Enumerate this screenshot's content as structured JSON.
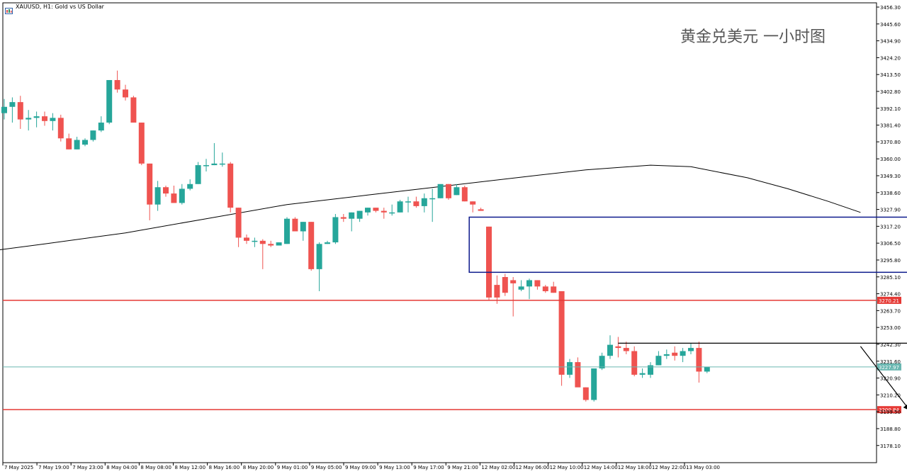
{
  "header": {
    "symbol_line": "XAUUSD, H1:  Gold vs US Dollar",
    "icon": "chart-window-icon"
  },
  "watermark": "黄金兑美元 一小时图",
  "colors": {
    "bull": "#26a69a",
    "bear": "#ef5350",
    "ma": "#000000",
    "support_resistance": "#e53935",
    "zone": "#0d1a8c",
    "bid_line": "#6ab7b1"
  },
  "chart_data": {
    "type": "candlestick",
    "symbol": "XAUUSD",
    "timeframe": "H1",
    "ylim": [
      3167.2,
      3459.0
    ],
    "y_ticks": [
      "3456.30",
      "3445.60",
      "3434.90",
      "3424.20",
      "3413.50",
      "3402.80",
      "3392.10",
      "3381.40",
      "3370.80",
      "3360.00",
      "3349.30",
      "3338.60",
      "3327.90",
      "3317.20",
      "3306.50",
      "3295.80",
      "3285.10",
      "3274.40",
      "3263.70",
      "3253.00",
      "3242.30",
      "3231.60",
      "3220.90",
      "3210.20",
      "3199.50",
      "3188.80",
      "3178.10"
    ],
    "x_ticks": [
      "7 May 2025",
      "7 May 19:00",
      "7 May 23:00",
      "8 May 04:00",
      "8 May 08:00",
      "8 May 12:00",
      "8 May 16:00",
      "8 May 20:00",
      "9 May 01:00",
      "9 May 05:00",
      "9 May 09:00",
      "9 May 13:00",
      "9 May 17:00",
      "9 May 21:00",
      "12 May 02:00",
      "12 May 06:00",
      "12 May 10:00",
      "12 May 14:00",
      "12 May 18:00",
      "12 May 22:00",
      "13 May 03:00"
    ],
    "candles": [
      [
        3389,
        3398,
        3385,
        3393
      ],
      [
        3393,
        3399,
        3383,
        3396
      ],
      [
        3396,
        3400,
        3379,
        3385
      ],
      [
        3385,
        3391,
        3378,
        3386
      ],
      [
        3386,
        3390,
        3380,
        3387
      ],
      [
        3387,
        3390,
        3381,
        3384
      ],
      [
        3384,
        3389,
        3378,
        3386
      ],
      [
        3386,
        3388,
        3371,
        3373
      ],
      [
        3373,
        3376,
        3366,
        3366
      ],
      [
        3366,
        3374,
        3366,
        3372
      ],
      [
        3369,
        3373,
        3368,
        3372
      ],
      [
        3372,
        3378,
        3371,
        3378
      ],
      [
        3378,
        3387,
        3377,
        3383
      ],
      [
        3383,
        3410,
        3382,
        3410
      ],
      [
        3410,
        3416,
        3402,
        3404
      ],
      [
        3404,
        3407,
        3397,
        3399
      ],
      [
        3399,
        3400,
        3383,
        3383
      ],
      [
        3383,
        3383,
        3356,
        3357
      ],
      [
        3357,
        3357,
        3321,
        3331
      ],
      [
        3331,
        3346,
        3327,
        3342
      ],
      [
        3342,
        3343,
        3336,
        3338
      ],
      [
        3338,
        3343,
        3332,
        3332
      ],
      [
        3332,
        3344,
        3331,
        3341
      ],
      [
        3341,
        3347,
        3340,
        3344
      ],
      [
        3344,
        3358,
        3344,
        3356
      ],
      [
        3356,
        3360,
        3352,
        3356
      ],
      [
        3356,
        3370,
        3356,
        3357
      ],
      [
        3357,
        3364,
        3355,
        3357
      ],
      [
        3357,
        3358,
        3326,
        3329
      ],
      [
        3329,
        3329,
        3304,
        3310
      ],
      [
        3310,
        3312,
        3306,
        3308
      ],
      [
        3308,
        3310,
        3304,
        3308
      ],
      [
        3308,
        3309,
        3290,
        3306
      ],
      [
        3306,
        3308,
        3304,
        3305
      ],
      [
        3305,
        3307,
        3305,
        3307
      ],
      [
        3306,
        3323,
        3306,
        3322
      ],
      [
        3322,
        3323,
        3314,
        3314
      ],
      [
        3314,
        3320,
        3308,
        3320
      ],
      [
        3320,
        3320,
        3289,
        3290
      ],
      [
        3290,
        3307,
        3276,
        3306
      ],
      [
        3306,
        3308,
        3306,
        3307
      ],
      [
        3307,
        3325,
        3306,
        3323
      ],
      [
        3323,
        3325,
        3320,
        3322
      ],
      [
        3322,
        3326,
        3314,
        3326
      ],
      [
        3322,
        3327,
        3320,
        3327
      ],
      [
        3326,
        3329,
        3324,
        3329
      ],
      [
        3329,
        3329,
        3326,
        3327
      ],
      [
        3327,
        3329,
        3322,
        3326
      ],
      [
        3326,
        3331,
        3324,
        3326
      ],
      [
        3326,
        3334,
        3326,
        3333
      ],
      [
        3333,
        3336,
        3326,
        3333
      ],
      [
        3333,
        3336,
        3329,
        3330
      ],
      [
        3330,
        3338,
        3326,
        3335
      ],
      [
        3335,
        3341,
        3320,
        3335
      ],
      [
        3335,
        3343,
        3335,
        3344
      ],
      [
        3344,
        3344,
        3334,
        3335
      ],
      [
        3337,
        3344,
        3337,
        3342
      ],
      [
        3342,
        3343,
        3333,
        3333
      ],
      [
        3333,
        3333,
        3326,
        3331
      ],
      [
        3328,
        3329,
        3327,
        3327
      ],
      [
        3317,
        3317,
        3270,
        3272
      ],
      [
        3280,
        3286,
        3268,
        3272
      ],
      [
        3285,
        3287,
        3273,
        3275
      ],
      [
        3283,
        3285,
        3260,
        3281
      ],
      [
        3277,
        3283,
        3276,
        3279
      ],
      [
        3279,
        3284,
        3271,
        3283
      ],
      [
        3283,
        3283,
        3277,
        3279
      ],
      [
        3279,
        3280,
        3275,
        3276
      ],
      [
        3279,
        3282,
        3275,
        3275
      ],
      [
        3276,
        3276,
        3216,
        3223
      ],
      [
        3223,
        3233,
        3221,
        3231
      ],
      [
        3231,
        3234,
        3216,
        3215
      ],
      [
        3215,
        3215,
        3206,
        3207
      ],
      [
        3207,
        3226,
        3206,
        3227
      ],
      [
        3227,
        3237,
        3226,
        3235
      ],
      [
        3235,
        3248,
        3233,
        3242
      ],
      [
        3241,
        3247,
        3234,
        3240
      ],
      [
        3240,
        3244,
        3236,
        3238
      ],
      [
        3238,
        3241,
        3222,
        3223
      ],
      [
        3223,
        3227,
        3221,
        3224
      ],
      [
        3223,
        3231,
        3221,
        3229
      ],
      [
        3229,
        3238,
        3229,
        3235
      ],
      [
        3235,
        3239,
        3233,
        3236
      ],
      [
        3237,
        3241,
        3232,
        3235
      ],
      [
        3235,
        3240,
        3231,
        3238
      ],
      [
        3238,
        3243,
        3236,
        3240
      ],
      [
        3240,
        3244,
        3218,
        3225
      ],
      [
        3225,
        3228,
        3224,
        3228
      ]
    ],
    "ma_curve": [
      [
        -1,
        3302
      ],
      [
        5,
        3306
      ],
      [
        15,
        3313
      ],
      [
        25,
        3322
      ],
      [
        35,
        3331
      ],
      [
        45,
        3337
      ],
      [
        55,
        3343
      ],
      [
        65,
        3349
      ],
      [
        72,
        3353
      ],
      [
        80,
        3356
      ],
      [
        85,
        3355
      ],
      [
        92,
        3348
      ],
      [
        97,
        3341
      ],
      [
        102,
        3333
      ],
      [
        106,
        3326
      ]
    ],
    "annotations": {
      "resistance_line": 3270.21,
      "resistance_label": "3270.21",
      "support_line": 3200.84,
      "support_label": "3200.84",
      "current_price": 3227.97,
      "current_price_label": "3227.97",
      "supply_zone": {
        "x_from": 58,
        "x_to": 124,
        "y_top": 3323,
        "y_bottom": 3288
      },
      "range_top_line": {
        "x_from": 76,
        "x_to": 122,
        "y": 3243
      },
      "arrows": [
        {
          "from": [
            106,
            3241
          ],
          "to": [
            112,
            3201
          ]
        },
        {
          "from": [
            114,
            3196
          ],
          "to": [
            118,
            3174
          ]
        }
      ]
    }
  }
}
